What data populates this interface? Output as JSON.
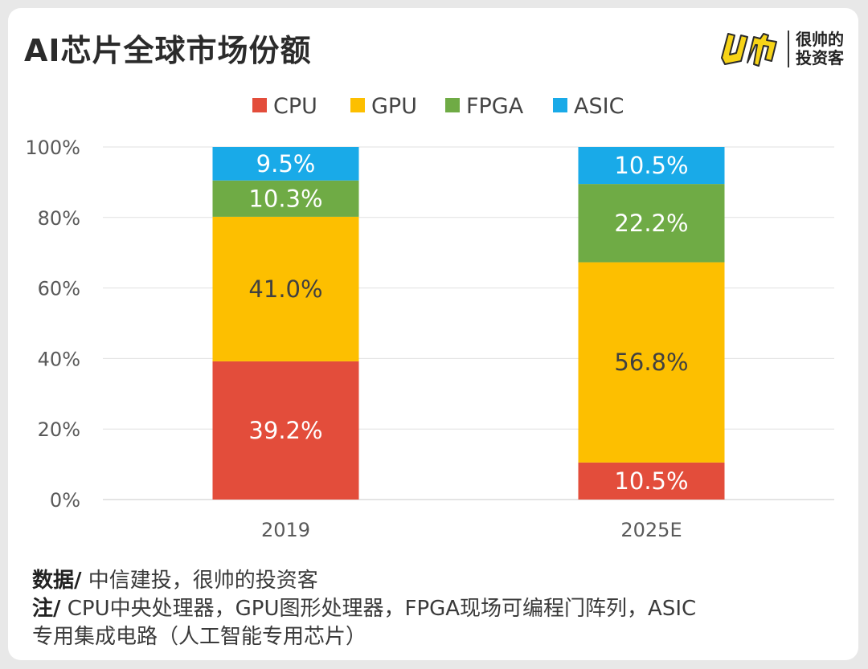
{
  "header": {
    "title": "AI芯片全球市场份额",
    "brand_line1": "很帅的",
    "brand_line2": "投资客"
  },
  "colors": {
    "cpu": "#e34d3b",
    "gpu": "#fdbf00",
    "fpga": "#6fab45",
    "asic": "#19aae8"
  },
  "footer": {
    "source_key": "数据/",
    "source_text": " 中信建投，很帅的投资客",
    "note_key": "注/",
    "note_text": " CPU中央处理器，GPU图形处理器，FPGA现场可编程门阵列，ASIC",
    "note_text2": "专用集成电路（人工智能专用芯片）"
  },
  "chart_data": {
    "type": "bar",
    "stacked": true,
    "categories": [
      "2019",
      "2025E"
    ],
    "series": [
      {
        "name": "CPU",
        "values": [
          39.2,
          10.5
        ],
        "labels": [
          "39.2%",
          "10.5%"
        ]
      },
      {
        "name": "GPU",
        "values": [
          41.0,
          56.8
        ],
        "labels": [
          "41.0%",
          "56.8%"
        ]
      },
      {
        "name": "FPGA",
        "values": [
          10.3,
          22.2
        ],
        "labels": [
          "10.3%",
          "22.2%"
        ]
      },
      {
        "name": "ASIC",
        "values": [
          9.5,
          10.5
        ],
        "labels": [
          "9.5%",
          "10.5%"
        ]
      }
    ],
    "yticks": [
      "0%",
      "20%",
      "40%",
      "60%",
      "80%",
      "100%"
    ],
    "ylim": [
      0,
      100
    ],
    "legend_position": "top-center",
    "grid": true
  }
}
